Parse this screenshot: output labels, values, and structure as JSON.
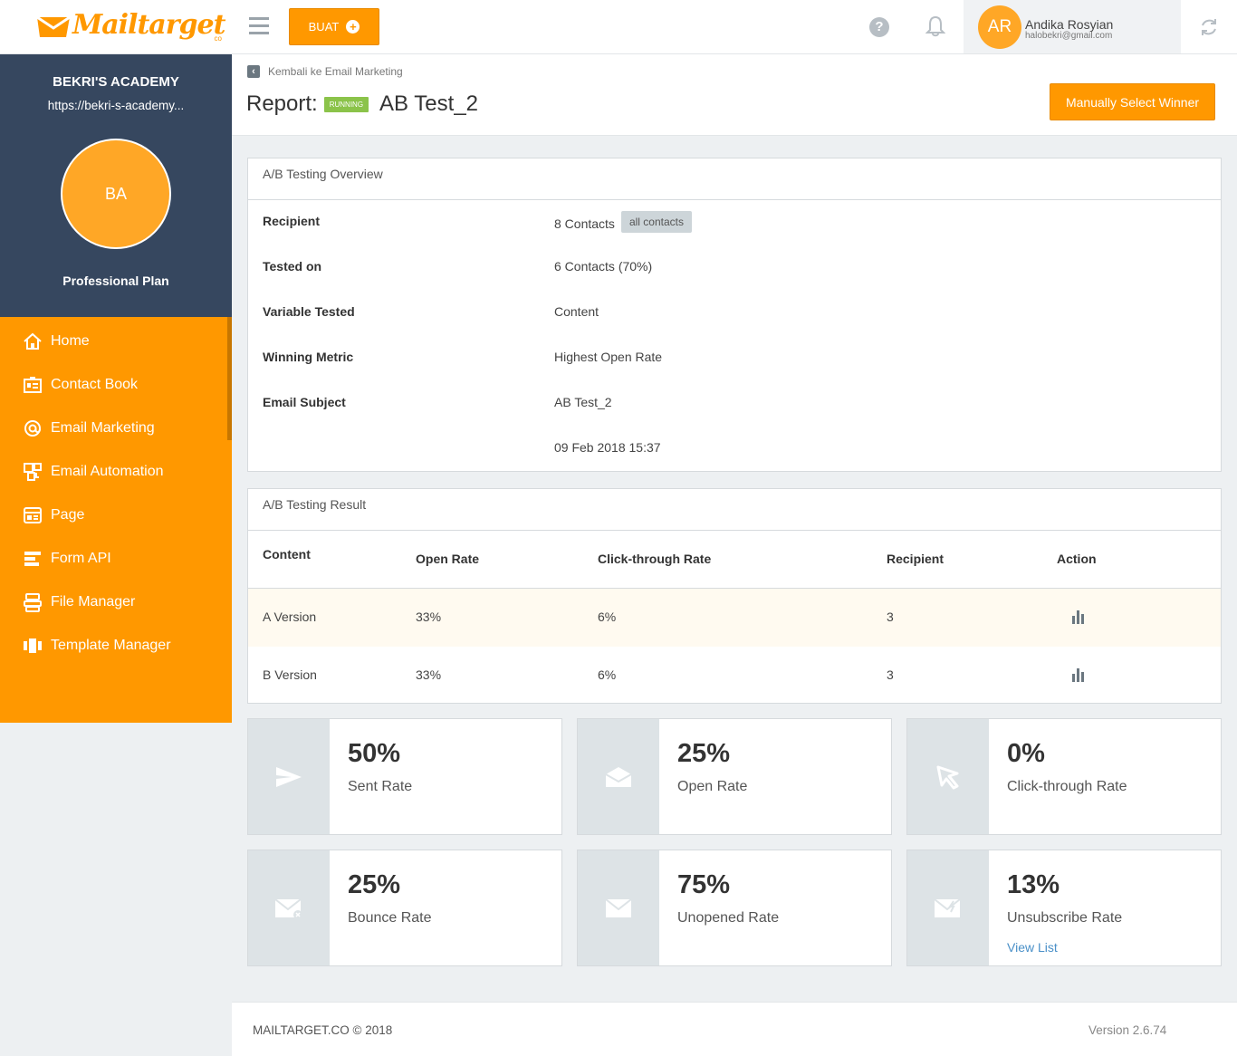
{
  "app": {
    "logo": "Mailtarget",
    "logo_suffix": "co",
    "create_button": "BUAT",
    "user": {
      "initials": "AR",
      "name": "Andika Rosyian",
      "email": "halobekri@gmail.com"
    }
  },
  "sidebar": {
    "org_name": "BEKRI'S ACADEMY",
    "org_url": "https://bekri-s-academy...",
    "org_initials": "BA",
    "plan": "Professional Plan",
    "items": [
      {
        "label": "Home",
        "icon": "home-icon"
      },
      {
        "label": "Contact Book",
        "icon": "contact-book-icon"
      },
      {
        "label": "Email Marketing",
        "icon": "at-icon"
      },
      {
        "label": "Email Automation",
        "icon": "automation-icon"
      },
      {
        "label": "Page",
        "icon": "page-icon"
      },
      {
        "label": "Form API",
        "icon": "form-icon"
      },
      {
        "label": "File Manager",
        "icon": "file-manager-icon"
      },
      {
        "label": "Template Manager",
        "icon": "template-icon"
      }
    ]
  },
  "header": {
    "back_label": "Kembali ke Email Marketing",
    "report_prefix": "Report:",
    "status_badge": "RUNNING",
    "campaign_name": "AB Test_2",
    "winner_button": "Manually Select Winner"
  },
  "overview": {
    "title": "A/B Testing Overview",
    "rows": [
      {
        "label": "Recipient",
        "value": "8 Contacts",
        "tag": "all contacts"
      },
      {
        "label": "Tested on",
        "value": "6 Contacts (70%)"
      },
      {
        "label": "Variable Tested",
        "value": "Content"
      },
      {
        "label": "Winning Metric",
        "value": "Highest Open Rate"
      },
      {
        "label": "Email Subject",
        "value": "AB Test_2"
      },
      {
        "label": "",
        "value": "09 Feb 2018 15:37"
      }
    ]
  },
  "result": {
    "title": "A/B Testing Result",
    "columns": [
      "Content",
      "Open Rate",
      "Click-through Rate",
      "Recipient",
      "Action"
    ],
    "rows": [
      {
        "content": "A Version",
        "open_rate": "33%",
        "ctr": "6%",
        "recipient": "3"
      },
      {
        "content": "B Version",
        "open_rate": "33%",
        "ctr": "6%",
        "recipient": "3"
      }
    ]
  },
  "stats": [
    {
      "value": "50%",
      "label": "Sent Rate",
      "icon": "send-icon"
    },
    {
      "value": "25%",
      "label": "Open Rate",
      "icon": "open-mail-icon"
    },
    {
      "value": "0%",
      "label": "Click-through Rate",
      "icon": "cursor-icon"
    },
    {
      "value": "25%",
      "label": "Bounce Rate",
      "icon": "bounce-mail-icon"
    },
    {
      "value": "75%",
      "label": "Unopened Rate",
      "icon": "closed-mail-icon"
    },
    {
      "value": "13%",
      "label": "Unsubscribe Rate",
      "icon": "unsubscribe-mail-icon",
      "link": "View List"
    }
  ],
  "footer": {
    "copyright": "MAILTARGET.CO © 2018",
    "version": "Version 2.6.74"
  },
  "colors": {
    "accent": "#ff9800",
    "sidebar_dark": "#36475f",
    "running": "#8bc34a",
    "link": "#4a90c8"
  }
}
